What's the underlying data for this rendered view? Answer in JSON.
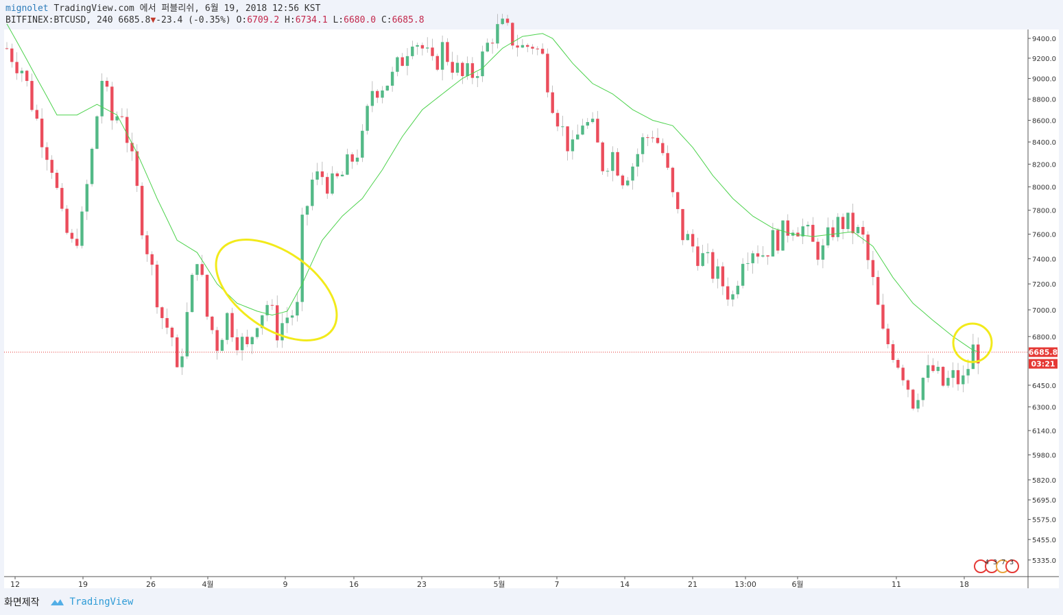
{
  "header": {
    "author": "mignolet",
    "published": "TradingView.com 에서 퍼블리쉬, 6월 19, 2018 12:56 KST",
    "symbol": "BITFINEX:BTCUSD, 240",
    "last": "6685.8",
    "change": "-23.4 (-0.35%)",
    "o_label": "O:",
    "o": "6709.2",
    "h_label": "H:",
    "h": "6734.1",
    "l_label": "L:",
    "l": "6680.0",
    "c_label": "C:",
    "c": "6685.8"
  },
  "footer": {
    "made_with": "화면제작",
    "brand": "TradingView"
  },
  "price_tag": {
    "value": "6685.8",
    "countdown": "03:21"
  },
  "event_badges": "4 3 7 3",
  "colors": {
    "up": "#53b987",
    "down": "#eb4d5c",
    "ma": "#4cd24c",
    "highlight": "#f2ea1b",
    "price_line": "#e53935"
  },
  "chart_data": {
    "type": "candlestick",
    "title": "BITFINEX:BTCUSD, 240",
    "y_ticks": [
      9400,
      9200,
      9000,
      8800,
      8600,
      8400,
      8200,
      8000,
      7800,
      7600,
      7400,
      7200,
      7000,
      6800,
      6450,
      6300,
      6140,
      5980,
      5820,
      5695,
      5575,
      5455,
      5335
    ],
    "y_tick_labels": [
      "9400.0",
      "9200.0",
      "9000.0",
      "8800.0",
      "8600.0",
      "8400.0",
      "8200.0",
      "8000.0",
      "7800.0",
      "7600.0",
      "7400.0",
      "7200.0",
      "7000.0",
      "6800.0",
      "6450.0",
      "6300.0",
      "6140.0",
      "5980.0",
      "5820.0",
      "5695.0",
      "5575.0",
      "5455.0",
      "5335.0"
    ],
    "x_tick_labels": [
      "12",
      "19",
      "26",
      "4월",
      "9",
      "16",
      "23",
      "5월",
      "7",
      "14",
      "21",
      "13:00",
      "6월",
      "11",
      "18"
    ],
    "scale": "log",
    "moving_average": "green line",
    "close_path": [
      [
        0,
        9300
      ],
      [
        3,
        9100
      ],
      [
        6,
        8600
      ],
      [
        9,
        8200
      ],
      [
        11,
        7700
      ],
      [
        13,
        7500
      ],
      [
        15,
        7700
      ],
      [
        17,
        8300
      ],
      [
        19,
        9000
      ],
      [
        21,
        8600
      ],
      [
        23,
        8700
      ],
      [
        25,
        8200
      ],
      [
        27,
        7700
      ],
      [
        29,
        7300
      ],
      [
        31,
        6950
      ],
      [
        33,
        6800
      ],
      [
        34,
        6500
      ],
      [
        36,
        6950
      ],
      [
        38,
        7450
      ],
      [
        40,
        6950
      ],
      [
        42,
        6750
      ],
      [
        44,
        6950
      ],
      [
        46,
        6800
      ],
      [
        48,
        6700
      ],
      [
        50,
        6950
      ],
      [
        52,
        7050
      ],
      [
        54,
        6850
      ],
      [
        56,
        6950
      ],
      [
        58,
        7000
      ],
      [
        59,
        7650
      ],
      [
        61,
        8050
      ],
      [
        63,
        8100
      ],
      [
        65,
        8000
      ],
      [
        67,
        8100
      ],
      [
        69,
        8250
      ],
      [
        71,
        8400
      ],
      [
        73,
        8900
      ],
      [
        75,
        8950
      ],
      [
        77,
        9000
      ],
      [
        79,
        9200
      ],
      [
        81,
        9450
      ],
      [
        83,
        9300
      ],
      [
        85,
        9100
      ],
      [
        87,
        9300
      ],
      [
        89,
        9150
      ],
      [
        91,
        9000
      ],
      [
        93,
        9050
      ],
      [
        95,
        9200
      ],
      [
        97,
        9450
      ],
      [
        99,
        9500
      ],
      [
        101,
        9400
      ],
      [
        103,
        9300
      ],
      [
        105,
        9350
      ],
      [
        107,
        9200
      ],
      [
        109,
        8800
      ],
      [
        111,
        8500
      ],
      [
        113,
        8300
      ],
      [
        115,
        8600
      ],
      [
        117,
        8500
      ],
      [
        119,
        8200
      ],
      [
        121,
        8300
      ],
      [
        123,
        8100
      ],
      [
        125,
        8200
      ],
      [
        127,
        8400
      ],
      [
        129,
        8500
      ],
      [
        131,
        8300
      ],
      [
        133,
        7900
      ],
      [
        135,
        7600
      ],
      [
        137,
        7500
      ],
      [
        139,
        7400
      ],
      [
        141,
        7300
      ],
      [
        143,
        7200
      ],
      [
        145,
        7100
      ],
      [
        147,
        7450
      ],
      [
        149,
        7500
      ],
      [
        151,
        7450
      ],
      [
        153,
        7550
      ],
      [
        155,
        7600
      ],
      [
        157,
        7700
      ],
      [
        159,
        7650
      ],
      [
        161,
        7500
      ],
      [
        163,
        7450
      ],
      [
        165,
        7650
      ],
      [
        167,
        7700
      ],
      [
        169,
        7650
      ],
      [
        171,
        7550
      ],
      [
        173,
        7200
      ],
      [
        175,
        6800
      ],
      [
        177,
        6700
      ],
      [
        179,
        6550
      ],
      [
        181,
        6350
      ],
      [
        183,
        6500
      ],
      [
        185,
        6550
      ],
      [
        187,
        6450
      ],
      [
        189,
        6500
      ],
      [
        191,
        6470
      ],
      [
        193,
        6700
      ],
      [
        194,
        6686
      ]
    ],
    "ma_path": [
      [
        0,
        9550
      ],
      [
        6,
        9000
      ],
      [
        10,
        8650
      ],
      [
        14,
        8650
      ],
      [
        18,
        8750
      ],
      [
        22,
        8650
      ],
      [
        26,
        8300
      ],
      [
        30,
        7900
      ],
      [
        34,
        7550
      ],
      [
        38,
        7450
      ],
      [
        42,
        7200
      ],
      [
        46,
        7050
      ],
      [
        50,
        6990
      ],
      [
        53,
        6960
      ],
      [
        56,
        6990
      ],
      [
        59,
        7200
      ],
      [
        63,
        7550
      ],
      [
        67,
        7750
      ],
      [
        71,
        7900
      ],
      [
        75,
        8150
      ],
      [
        79,
        8450
      ],
      [
        83,
        8700
      ],
      [
        87,
        8850
      ],
      [
        91,
        9000
      ],
      [
        95,
        9100
      ],
      [
        99,
        9300
      ],
      [
        103,
        9420
      ],
      [
        107,
        9450
      ],
      [
        109,
        9400
      ],
      [
        113,
        9150
      ],
      [
        117,
        8950
      ],
      [
        121,
        8850
      ],
      [
        125,
        8700
      ],
      [
        129,
        8600
      ],
      [
        133,
        8550
      ],
      [
        137,
        8350
      ],
      [
        141,
        8100
      ],
      [
        145,
        7900
      ],
      [
        149,
        7750
      ],
      [
        153,
        7650
      ],
      [
        157,
        7600
      ],
      [
        161,
        7580
      ],
      [
        165,
        7600
      ],
      [
        169,
        7620
      ],
      [
        173,
        7500
      ],
      [
        177,
        7250
      ],
      [
        181,
        7050
      ],
      [
        185,
        6920
      ],
      [
        189,
        6800
      ],
      [
        193,
        6700
      ],
      [
        194,
        6690
      ]
    ],
    "n_candles": 195
  }
}
